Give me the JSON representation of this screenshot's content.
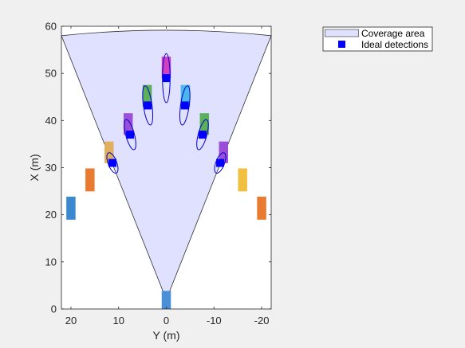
{
  "chart_data": {
    "type": "scatter",
    "xlabel": "Y (m)",
    "ylabel": "X (m)",
    "xlim": [
      22,
      -22
    ],
    "ylim": [
      0,
      60
    ],
    "x_reversed": true,
    "x_ticks": [
      20,
      10,
      0,
      -10,
      -20
    ],
    "x_tick_labels": [
      "20",
      "10",
      "0",
      "-10",
      "-20"
    ],
    "y_ticks": [
      0,
      10,
      20,
      30,
      40,
      50,
      60
    ],
    "y_tick_labels": [
      "0",
      "10",
      "20",
      "30",
      "40",
      "50",
      "60"
    ],
    "grid": false,
    "legend_position": "top-right",
    "legend": {
      "coverage_label": "Coverage area",
      "detections_label": "Ideal detections"
    },
    "coverage_area": {
      "sensor_origin": [
        0,
        2
      ],
      "left_edge_end": [
        22,
        58
      ],
      "right_edge_end": [
        -22,
        58
      ],
      "arc_top": 60,
      "fill_color": "#e0e0ff",
      "edge_color": "#333333"
    },
    "vehicles": [
      {
        "y": 0,
        "x_start": 0,
        "x_end": 3.8,
        "color": "#4a90d9"
      },
      {
        "y": 20,
        "x_start": 19,
        "x_end": 23.8,
        "color": "#3a88cf"
      },
      {
        "y": 16,
        "x_start": 25,
        "x_end": 29.8,
        "color": "#e87b30"
      },
      {
        "y": 12,
        "x_start": 31,
        "x_end": 35.5,
        "color": "#e0b060"
      },
      {
        "y": 8,
        "x_start": 37,
        "x_end": 41.5,
        "color": "#9b4fd9"
      },
      {
        "y": 4,
        "x_start": 43,
        "x_end": 47.5,
        "color": "#5cb05c"
      },
      {
        "y": 0,
        "x_start": 49,
        "x_end": 53.5,
        "color": "#d040c0"
      },
      {
        "y": -4,
        "x_start": 43,
        "x_end": 47.5,
        "color": "#4ab8ec"
      },
      {
        "y": -8,
        "x_start": 37,
        "x_end": 41.5,
        "color": "#5cb05c"
      },
      {
        "y": -12,
        "x_start": 31,
        "x_end": 35.5,
        "color": "#9b4fd9"
      },
      {
        "y": -16,
        "x_start": 25,
        "x_end": 29.8,
        "color": "#f0c040"
      },
      {
        "y": -20,
        "x_start": 19,
        "x_end": 23.8,
        "color": "#e87b30"
      }
    ],
    "detections": [
      {
        "y": 11.3,
        "x": 31.0
      },
      {
        "y": 7.6,
        "x": 37.0
      },
      {
        "y": 3.9,
        "x": 43.2
      },
      {
        "y": 0,
        "x": 49.0
      },
      {
        "y": -3.9,
        "x": 43.2
      },
      {
        "y": -7.6,
        "x": 37.0
      },
      {
        "y": -11.3,
        "x": 31.0
      }
    ],
    "detection_color": "#0000ff",
    "covariance_ellipses": [
      {
        "y": 11.3,
        "x": 31.0,
        "rx": 0.9,
        "ry": 2.3,
        "angle": -21
      },
      {
        "y": 7.6,
        "x": 37.0,
        "rx": 0.9,
        "ry": 3.3,
        "angle": -15
      },
      {
        "y": 3.9,
        "x": 43.2,
        "rx": 0.9,
        "ry": 4.2,
        "angle": -8
      },
      {
        "y": 0,
        "x": 49.0,
        "rx": 0.8,
        "ry": 5.2,
        "angle": 0
      },
      {
        "y": -3.9,
        "x": 43.2,
        "rx": 0.9,
        "ry": 4.2,
        "angle": 8
      },
      {
        "y": -7.6,
        "x": 37.0,
        "rx": 0.9,
        "ry": 3.3,
        "angle": 15
      },
      {
        "y": -11.3,
        "x": 31.0,
        "rx": 0.9,
        "ry": 2.3,
        "angle": 21
      }
    ]
  }
}
